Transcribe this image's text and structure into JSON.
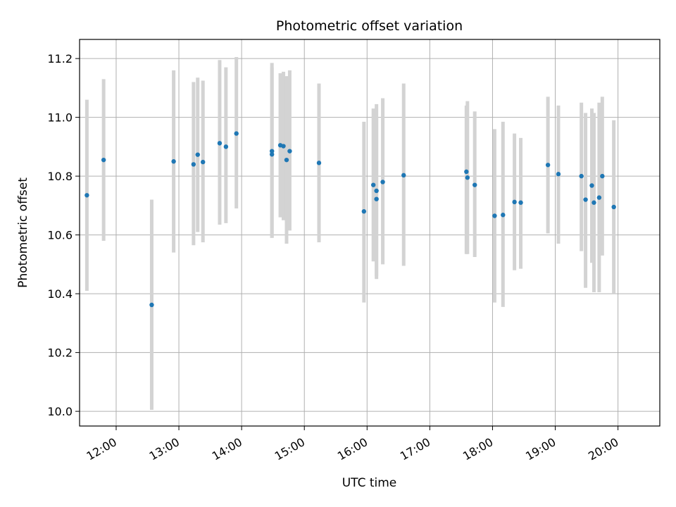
{
  "chart_data": {
    "type": "scatter",
    "title": "Photometric offset variation",
    "xlabel": "UTC time",
    "ylabel": "Photometric offset",
    "x_axis_type": "time",
    "xlim": [
      "11:25",
      "20:40"
    ],
    "ylim": [
      9.95,
      11.265
    ],
    "x_ticks": [
      "12:00",
      "13:00",
      "14:00",
      "15:00",
      "16:00",
      "17:00",
      "18:00",
      "19:00",
      "20:00"
    ],
    "y_ticks": [
      10.0,
      10.2,
      10.4,
      10.6,
      10.8,
      11.0,
      11.2
    ],
    "y_tick_labels": [
      "10.0",
      "10.2",
      "10.4",
      "10.6",
      "10.8",
      "11.0",
      "11.2"
    ],
    "grid": true,
    "marker_color": "#1f77b4",
    "errorbar_color": "#d3d3d3",
    "series": [
      {
        "points": [
          {
            "x": "11:32",
            "y": 10.735,
            "ylow": 10.41,
            "yhigh": 11.06
          },
          {
            "x": "11:48",
            "y": 10.855,
            "ylow": 10.58,
            "yhigh": 11.13
          },
          {
            "x": "12:34",
            "y": 10.362,
            "ylow": 10.005,
            "yhigh": 10.72
          },
          {
            "x": "12:55",
            "y": 10.85,
            "ylow": 10.54,
            "yhigh": 11.16
          },
          {
            "x": "13:14",
            "y": 10.84,
            "ylow": 10.565,
            "yhigh": 11.12
          },
          {
            "x": "13:18",
            "y": 10.873,
            "ylow": 10.61,
            "yhigh": 11.135
          },
          {
            "x": "13:23",
            "y": 10.848,
            "ylow": 10.575,
            "yhigh": 11.125
          },
          {
            "x": "13:39",
            "y": 10.912,
            "ylow": 10.635,
            "yhigh": 11.195
          },
          {
            "x": "13:45",
            "y": 10.9,
            "ylow": 10.64,
            "yhigh": 11.17
          },
          {
            "x": "13:55",
            "y": 10.945,
            "ylow": 10.69,
            "yhigh": 11.205
          },
          {
            "x": "14:29",
            "y": 10.885,
            "ylow": 10.59,
            "yhigh": 11.185
          },
          {
            "x": "14:29",
            "y": 10.874,
            "ylow": 10.59,
            "yhigh": 11.17
          },
          {
            "x": "14:37",
            "y": 10.905,
            "ylow": 10.66,
            "yhigh": 11.15
          },
          {
            "x": "14:40",
            "y": 10.902,
            "ylow": 10.65,
            "yhigh": 11.155
          },
          {
            "x": "14:43",
            "y": 10.855,
            "ylow": 10.57,
            "yhigh": 11.14
          },
          {
            "x": "14:46",
            "y": 10.885,
            "ylow": 10.615,
            "yhigh": 11.16
          },
          {
            "x": "15:14",
            "y": 10.845,
            "ylow": 10.575,
            "yhigh": 11.115
          },
          {
            "x": "15:57",
            "y": 10.68,
            "ylow": 10.37,
            "yhigh": 10.985
          },
          {
            "x": "16:06",
            "y": 10.77,
            "ylow": 10.51,
            "yhigh": 11.03
          },
          {
            "x": "16:09",
            "y": 10.722,
            "ylow": 10.45,
            "yhigh": 11.045
          },
          {
            "x": "16:09",
            "y": 10.75,
            "ylow": 10.46,
            "yhigh": 11.0
          },
          {
            "x": "16:15",
            "y": 10.78,
            "ylow": 10.5,
            "yhigh": 11.065
          },
          {
            "x": "16:35",
            "y": 10.803,
            "ylow": 10.495,
            "yhigh": 11.115
          },
          {
            "x": "17:35",
            "y": 10.815,
            "ylow": 10.535,
            "yhigh": 11.04
          },
          {
            "x": "17:36",
            "y": 10.795,
            "ylow": 10.535,
            "yhigh": 11.055
          },
          {
            "x": "17:43",
            "y": 10.77,
            "ylow": 10.525,
            "yhigh": 11.02
          },
          {
            "x": "18:02",
            "y": 10.665,
            "ylow": 10.37,
            "yhigh": 10.96
          },
          {
            "x": "18:10",
            "y": 10.668,
            "ylow": 10.355,
            "yhigh": 10.985
          },
          {
            "x": "18:21",
            "y": 10.712,
            "ylow": 10.48,
            "yhigh": 10.945
          },
          {
            "x": "18:27",
            "y": 10.71,
            "ylow": 10.485,
            "yhigh": 10.93
          },
          {
            "x": "18:53",
            "y": 10.838,
            "ylow": 10.605,
            "yhigh": 11.07
          },
          {
            "x": "19:03",
            "y": 10.807,
            "ylow": 10.57,
            "yhigh": 11.04
          },
          {
            "x": "19:25",
            "y": 10.8,
            "ylow": 10.545,
            "yhigh": 11.05
          },
          {
            "x": "19:29",
            "y": 10.72,
            "ylow": 10.42,
            "yhigh": 11.015
          },
          {
            "x": "19:35",
            "y": 10.768,
            "ylow": 10.505,
            "yhigh": 11.03
          },
          {
            "x": "19:37",
            "y": 10.71,
            "ylow": 10.405,
            "yhigh": 11.015
          },
          {
            "x": "19:42",
            "y": 10.727,
            "ylow": 10.405,
            "yhigh": 11.05
          },
          {
            "x": "19:45",
            "y": 10.8,
            "ylow": 10.53,
            "yhigh": 11.07
          },
          {
            "x": "19:56",
            "y": 10.695,
            "ylow": 10.4,
            "yhigh": 10.99
          }
        ]
      }
    ]
  }
}
